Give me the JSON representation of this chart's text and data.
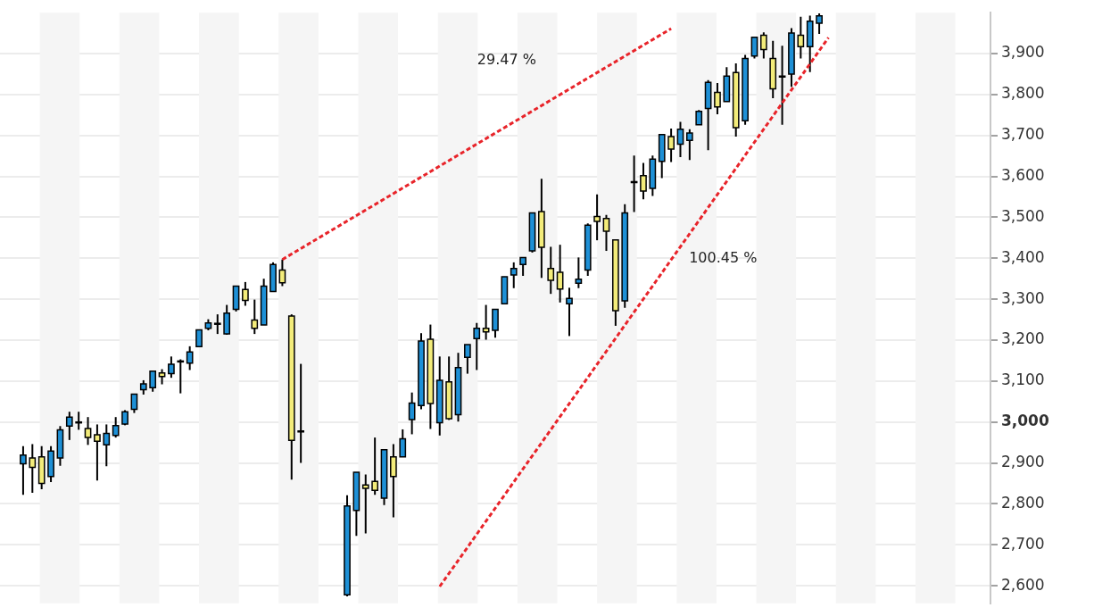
{
  "chart_data": {
    "type": "candlestick",
    "categories": [
      null,
      null,
      null,
      null,
      null,
      null,
      null,
      null,
      null,
      null,
      null,
      null,
      null,
      null,
      null,
      null,
      null,
      null,
      null,
      null,
      null,
      null,
      null,
      null,
      null,
      null,
      null,
      null,
      null,
      null,
      null,
      null,
      null,
      null,
      null,
      null,
      null,
      null,
      null,
      null,
      null,
      null,
      null,
      null,
      null,
      null,
      null,
      null,
      null,
      null,
      null,
      null,
      null,
      null,
      null,
      null,
      null,
      null,
      null,
      null,
      null,
      null,
      null,
      null,
      null,
      null,
      null,
      null,
      null,
      null,
      null,
      null,
      null,
      null,
      null,
      null,
      null,
      null,
      null,
      null,
      null,
      null,
      null,
      null,
      null,
      null,
      null,
      null,
      null,
      null,
      null,
      null,
      null,
      null,
      null,
      null,
      null,
      null,
      null,
      null,
      null,
      null,
      null,
      null,
      null,
      null,
      null
    ],
    "ohlc": [
      null,
      null,
      [
        2898,
        2941,
        2822,
        2919
      ],
      [
        2912,
        2946,
        2827,
        2889
      ],
      [
        2915,
        2941,
        2836,
        2850
      ],
      [
        2867,
        2941,
        2853,
        2929
      ],
      [
        2912,
        2990,
        2893,
        2981
      ],
      [
        2990,
        3025,
        2956,
        3012
      ],
      [
        3000,
        3025,
        2981,
        2998
      ],
      [
        2984,
        3012,
        2944,
        2962
      ],
      [
        2969,
        2994,
        2857,
        2953
      ],
      [
        2944,
        2994,
        2892,
        2972
      ],
      [
        2967,
        3012,
        2962,
        2991
      ],
      [
        2995,
        3029,
        2992,
        3025
      ],
      [
        3031,
        3068,
        3022,
        3068
      ],
      [
        3079,
        3102,
        3067,
        3093
      ],
      [
        3084,
        3124,
        3074,
        3124
      ],
      [
        3120,
        3129,
        3092,
        3111
      ],
      [
        3118,
        3160,
        3108,
        3141
      ],
      [
        3148,
        3153,
        3070,
        3149
      ],
      [
        3144,
        3185,
        3127,
        3171
      ],
      [
        3184,
        3225,
        3184,
        3225
      ],
      [
        3229,
        3251,
        3224,
        3242
      ],
      [
        3240,
        3263,
        3215,
        3241
      ],
      [
        3215,
        3286,
        3213,
        3266
      ],
      [
        3275,
        3332,
        3270,
        3332
      ],
      [
        3324,
        3342,
        3284,
        3297
      ],
      [
        3249,
        3299,
        3215,
        3229
      ],
      [
        3237,
        3350,
        3237,
        3332
      ],
      [
        3319,
        3390,
        3319,
        3385
      ],
      [
        3371,
        3397,
        3332,
        3340
      ],
      [
        3259,
        3263,
        2859,
        2955
      ],
      [
        2978,
        3142,
        2900,
        2977
      ],
      null,
      null,
      null,
      null,
      [
        2578,
        2821,
        2574,
        2795
      ],
      [
        2784,
        2877,
        2722,
        2877
      ],
      [
        2846,
        2872,
        2728,
        2838
      ],
      [
        2855,
        2962,
        2822,
        2833
      ],
      [
        2814,
        2932,
        2797,
        2932
      ],
      [
        2915,
        2946,
        2767,
        2867
      ],
      [
        2915,
        2982,
        2915,
        2959
      ],
      [
        3006,
        3072,
        2970,
        3046
      ],
      [
        3040,
        3217,
        3031,
        3198
      ],
      [
        3202,
        3238,
        2983,
        3045
      ],
      [
        2998,
        3160,
        2967,
        3102
      ],
      [
        3098,
        3160,
        3005,
        3008
      ],
      [
        3018,
        3169,
        3001,
        3133
      ],
      [
        3158,
        3189,
        3118,
        3189
      ],
      [
        3204,
        3242,
        3127,
        3229
      ],
      [
        3229,
        3286,
        3201,
        3220
      ],
      [
        3224,
        3275,
        3206,
        3275
      ],
      [
        3289,
        3355,
        3289,
        3355
      ],
      [
        3359,
        3390,
        3327,
        3375
      ],
      [
        3385,
        3402,
        3357,
        3402
      ],
      [
        3418,
        3511,
        3414,
        3511
      ],
      [
        3514,
        3594,
        3352,
        3427
      ],
      [
        3375,
        3428,
        3313,
        3346
      ],
      [
        3366,
        3433,
        3292,
        3325
      ],
      [
        3289,
        3328,
        3210,
        3302
      ],
      [
        3339,
        3402,
        3327,
        3349
      ],
      [
        3371,
        3485,
        3357,
        3481
      ],
      [
        3502,
        3556,
        3444,
        3490
      ],
      [
        3497,
        3506,
        3418,
        3466
      ],
      [
        3445,
        3445,
        3235,
        3272
      ],
      [
        3296,
        3532,
        3279,
        3511
      ],
      [
        3587,
        3651,
        3513,
        3586
      ],
      [
        3602,
        3633,
        3544,
        3564
      ],
      [
        3571,
        3651,
        3552,
        3642
      ],
      [
        3637,
        3702,
        3596,
        3702
      ],
      [
        3697,
        3717,
        3635,
        3667
      ],
      [
        3679,
        3733,
        3647,
        3715
      ],
      [
        3688,
        3715,
        3640,
        3706
      ],
      [
        3726,
        3762,
        3726,
        3759
      ],
      [
        3766,
        3835,
        3664,
        3830
      ],
      [
        3805,
        3828,
        3752,
        3770
      ],
      [
        3783,
        3867,
        3783,
        3845
      ],
      [
        3854,
        3876,
        3697,
        3719
      ],
      [
        3736,
        3897,
        3726,
        3888
      ],
      [
        3894,
        3940,
        3888,
        3940
      ],
      [
        3945,
        3952,
        3888,
        3910
      ],
      [
        3888,
        3931,
        3791,
        3814
      ],
      [
        3845,
        3919,
        3726,
        3844
      ],
      [
        3850,
        3962,
        3819,
        3950
      ],
      [
        3945,
        3990,
        3888,
        3917
      ],
      [
        3917,
        3993,
        3855,
        3979
      ],
      [
        3974,
        3998,
        3948,
        3992
      ],
      null,
      null,
      null,
      null,
      null,
      null,
      null,
      null,
      null,
      null,
      null,
      null,
      null,
      null,
      null,
      null,
      null,
      null
    ],
    "colors": [
      null,
      null,
      "#1e90d6",
      "#f3ec7a",
      "#f3ec7a",
      "#1e90d6",
      "#1e90d6",
      "#1e90d6",
      "#f3ec7a",
      "#f3ec7a",
      "#f3ec7a",
      "#1e90d6",
      "#1e90d6",
      "#1e90d6",
      "#1e90d6",
      "#1e90d6",
      "#1e90d6",
      "#f3ec7a",
      "#1e90d6",
      "#1e90d6",
      "#1e90d6",
      "#1e90d6",
      "#1e90d6",
      "#1e90d6",
      "#1e90d6",
      "#1e90d6",
      "#f3ec7a",
      "#f3ec7a",
      "#1e90d6",
      "#1e90d6",
      "#f3ec7a",
      "#f3ec7a",
      "#f3ec7a",
      null,
      null,
      null,
      null,
      "#1e90d6",
      "#1e90d6",
      "#f3ec7a",
      "#f3ec7a",
      "#1e90d6",
      "#f3ec7a",
      "#1e90d6",
      "#1e90d6",
      "#1e90d6",
      "#f3ec7a",
      "#1e90d6",
      "#f3ec7a",
      "#1e90d6",
      "#1e90d6",
      "#1e90d6",
      "#f3ec7a",
      "#1e90d6",
      "#1e90d6",
      "#1e90d6",
      "#1e90d6",
      "#1e90d6",
      "#f3ec7a",
      "#f3ec7a",
      "#f3ec7a",
      "#1e90d6",
      "#1e90d6",
      "#1e90d6",
      "#f3ec7a",
      "#f3ec7a",
      "#f3ec7a",
      "#1e90d6",
      "#f3ec7a",
      "#f3ec7a",
      "#1e90d6",
      "#1e90d6",
      "#f3ec7a",
      "#1e90d6",
      "#1e90d6",
      "#1e90d6",
      "#1e90d6",
      "#f3ec7a",
      "#1e90d6",
      "#f3ec7a",
      "#1e90d6",
      "#1e90d6",
      "#f3ec7a",
      "#f3ec7a",
      "#f3ec7a",
      "#1e90d6",
      "#f3ec7a",
      "#1e90d6",
      "#1e90d6",
      null,
      null,
      null,
      null,
      null,
      null,
      null,
      null,
      null,
      null,
      null,
      null,
      null,
      null,
      null,
      null,
      null,
      null
    ],
    "series": [
      {
        "type": "line",
        "name": "29.47 %",
        "color": "#e8242a",
        "line_style": "dashed",
        "values": [
          null,
          null,
          null,
          null,
          null,
          null,
          null,
          null,
          null,
          null,
          null,
          null,
          null,
          null,
          null,
          null,
          null,
          null,
          null,
          null,
          null,
          null,
          null,
          null,
          null,
          null,
          null,
          null,
          null,
          null,
          3397,
          null,
          null,
          null,
          null,
          null,
          null,
          null,
          null,
          null,
          null,
          null,
          null,
          null,
          null,
          null,
          null,
          null,
          null,
          null,
          null,
          null,
          null,
          null,
          null,
          null,
          null,
          null,
          null,
          null,
          null,
          null,
          null,
          null,
          null,
          null,
          null,
          null,
          null,
          null,
          null,
          null,
          3961,
          null,
          null,
          null,
          null,
          null,
          null,
          null,
          null,
          null,
          null,
          null,
          null,
          null,
          null,
          null,
          null,
          null,
          null,
          null,
          null,
          null,
          null,
          null,
          null,
          null,
          null,
          null,
          null,
          null,
          null,
          null,
          null,
          null,
          null
        ]
      },
      {
        "type": "line",
        "name": "100.45 %",
        "color": "#e8242a",
        "line_style": "dashed",
        "values": [
          null,
          null,
          null,
          null,
          null,
          null,
          null,
          null,
          null,
          null,
          null,
          null,
          null,
          null,
          null,
          null,
          null,
          null,
          null,
          null,
          null,
          null,
          null,
          null,
          null,
          null,
          null,
          null,
          null,
          null,
          null,
          null,
          null,
          null,
          null,
          null,
          null,
          null,
          null,
          null,
          null,
          null,
          null,
          null,
          null,
          null,
          null,
          2598,
          null,
          null,
          null,
          null,
          null,
          null,
          null,
          null,
          null,
          null,
          null,
          null,
          null,
          null,
          null,
          null,
          null,
          null,
          null,
          null,
          null,
          null,
          null,
          null,
          null,
          null,
          null,
          null,
          null,
          null,
          null,
          null,
          null,
          null,
          null,
          null,
          null,
          null,
          null,
          null,
          null,
          3939,
          null,
          null,
          null,
          null,
          null,
          null,
          null,
          null,
          null,
          null,
          null,
          null,
          null,
          null,
          null,
          null,
          null
        ]
      }
    ],
    "ylim": [
      2557,
      4000
    ],
    "yticks": [
      {
        "value": 2600,
        "label": "2,600"
      },
      {
        "value": 2700,
        "label": "2,700"
      },
      {
        "value": 2800,
        "label": "2,800"
      },
      {
        "value": 2900,
        "label": "2,900"
      },
      {
        "value": 3000,
        "label": "3,000"
      },
      {
        "value": 3100,
        "label": "3,100"
      },
      {
        "value": 3200,
        "label": "3,200"
      },
      {
        "value": 3300,
        "label": "3,300"
      },
      {
        "value": 3400,
        "label": "3,400"
      },
      {
        "value": 3500,
        "label": "3,500"
      },
      {
        "value": 3600,
        "label": "3,600"
      },
      {
        "value": 3700,
        "label": "3,700"
      },
      {
        "value": 3800,
        "label": "3,800"
      },
      {
        "value": 3900,
        "label": "3,900"
      }
    ],
    "grid": "y",
    "legend": false,
    "tick_labels": "y"
  }
}
